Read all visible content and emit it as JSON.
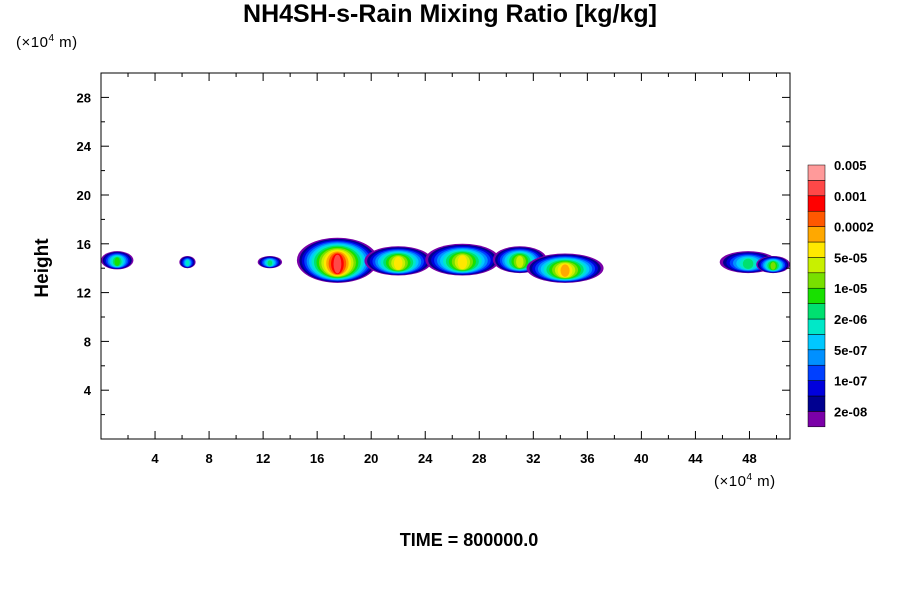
{
  "chart_data": {
    "type": "heatmap",
    "title": "NH4SH-s-Rain Mixing Ratio [kg/kg]",
    "ylabel": "Height",
    "xlabel": "",
    "x_unit": {
      "prefix": "(×10",
      "exp": "4",
      "suffix": " m)"
    },
    "y_unit": {
      "prefix": "(×10",
      "exp": "4",
      "suffix": " m)"
    },
    "xlim": [
      0,
      51
    ],
    "ylim": [
      0,
      30
    ],
    "x_ticks": [
      4,
      8,
      12,
      16,
      20,
      24,
      28,
      32,
      36,
      40,
      44,
      48
    ],
    "y_ticks": [
      4,
      8,
      12,
      16,
      20,
      24,
      28
    ],
    "x_minor_step": 2,
    "y_minor_step": 2,
    "footer": "TIME = 800000.0",
    "colorbar": {
      "colors": [
        "#7b00a8",
        "#000090",
        "#0000dc",
        "#0040ff",
        "#0090ff",
        "#00c8ff",
        "#00e8c8",
        "#00e070",
        "#18e000",
        "#78e000",
        "#c8f000",
        "#ffe800",
        "#ffa800",
        "#ff5800",
        "#ff0000",
        "#ff4848",
        "#ff9a9a"
      ],
      "labels": [
        {
          "text": "2e-08",
          "after_level": 1
        },
        {
          "text": "1e-07",
          "after_level": 3
        },
        {
          "text": "5e-07",
          "after_level": 5
        },
        {
          "text": "2e-06",
          "after_level": 7
        },
        {
          "text": "1e-05",
          "after_level": 9
        },
        {
          "text": "5e-05",
          "after_level": 11
        },
        {
          "text": "0.0002",
          "after_level": 13
        },
        {
          "text": "0.001",
          "after_level": 15
        },
        {
          "text": "0.005",
          "after_level": 17
        }
      ]
    },
    "features": [
      {
        "x": [
          0,
          2.4
        ],
        "y": [
          13.9,
          15.4
        ],
        "peak": 8
      },
      {
        "x": [
          5.8,
          7.0
        ],
        "y": [
          14.0,
          15.0
        ],
        "peak": 6
      },
      {
        "x": [
          11.6,
          13.4
        ],
        "y": [
          14.0,
          15.0
        ],
        "peak": 7
      },
      {
        "x": [
          14.5,
          20.5
        ],
        "y": [
          12.8,
          16.5
        ],
        "peak": 15
      },
      {
        "x": [
          19.5,
          24.5
        ],
        "y": [
          13.4,
          15.8
        ],
        "peak": 11
      },
      {
        "x": [
          24.0,
          29.5
        ],
        "y": [
          13.4,
          16.0
        ],
        "peak": 11
      },
      {
        "x": [
          29.0,
          33.0
        ],
        "y": [
          13.6,
          15.8
        ],
        "peak": 10
      },
      {
        "x": [
          31.5,
          37.2
        ],
        "y": [
          12.8,
          15.2
        ],
        "peak": 12
      },
      {
        "x": [
          45.8,
          50.0
        ],
        "y": [
          13.6,
          15.4
        ],
        "peak": 7
      },
      {
        "x": [
          48.5,
          51.0
        ],
        "y": [
          13.6,
          15.0
        ],
        "peak": 9
      }
    ]
  }
}
